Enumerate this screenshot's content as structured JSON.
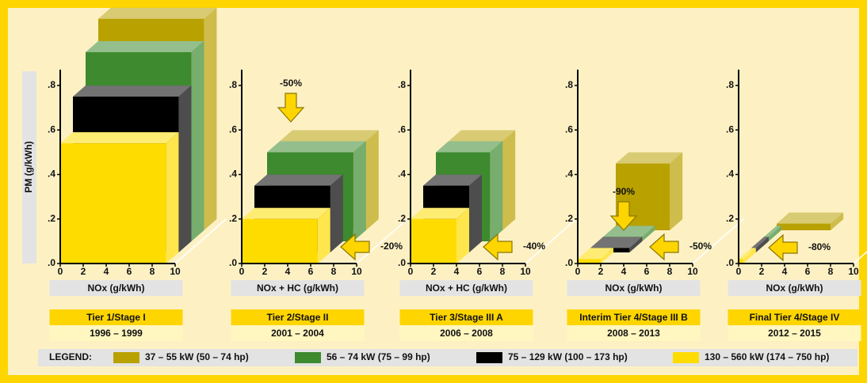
{
  "chart_data": [
    {
      "type": "box",
      "ylabel": "PM (g/kWh)",
      "xlabel": "NOx (g/kWh)",
      "title": "Tier 1/Stage I",
      "subtitle": "1996 – 1999",
      "xlim": [
        0,
        10
      ],
      "xticks": [
        0,
        2,
        4,
        6,
        8,
        10
      ],
      "ylim": [
        0,
        0.8
      ],
      "yticks": [
        {
          "value": 0,
          "label": ".0"
        },
        {
          "value": 0.2,
          "label": ".2"
        },
        {
          "value": 0.4,
          "label": ".4"
        },
        {
          "value": 0.6,
          "label": ".6"
        },
        {
          "value": 0.8,
          "label": ".8"
        }
      ],
      "boxes": [
        {
          "nox": 9.2,
          "pm": 0.95
        },
        {
          "nox": 9.2,
          "pm": 0.85
        },
        {
          "nox": 9.2,
          "pm": 0.7
        },
        {
          "nox": 9.2,
          "pm": 0.54
        }
      ],
      "annotations": []
    },
    {
      "type": "box",
      "xlabel": "NOx + HC (g/kWh)",
      "title": "Tier 2/Stage II",
      "subtitle": "2001 – 2004",
      "xlim": [
        0,
        10
      ],
      "xticks": [
        0,
        2,
        4,
        6,
        8,
        10
      ],
      "ylim": [
        0,
        0.8
      ],
      "yticks": [
        {
          "value": 0,
          "label": ".0"
        },
        {
          "value": 0.2,
          "label": ".2"
        },
        {
          "value": 0.4,
          "label": ".4"
        },
        {
          "value": 0.6,
          "label": ".6"
        },
        {
          "value": 0.8,
          "label": ".8"
        }
      ],
      "boxes": [
        {
          "nox": 7.5,
          "pm": 0.4
        },
        {
          "nox": 7.5,
          "pm": 0.4
        },
        {
          "nox": 6.6,
          "pm": 0.3
        },
        {
          "nox": 6.6,
          "pm": 0.2
        }
      ],
      "annotations": [
        {
          "text": "-50%",
          "direction": "down"
        },
        {
          "text": "-20%",
          "direction": "left"
        }
      ]
    },
    {
      "type": "box",
      "xlabel": "NOx + HC (g/kWh)",
      "title": "Tier 3/Stage III A",
      "subtitle": "2006 – 2008",
      "xlim": [
        0,
        10
      ],
      "xticks": [
        0,
        2,
        4,
        6,
        8,
        10
      ],
      "ylim": [
        0,
        0.8
      ],
      "yticks": [
        {
          "value": 0,
          "label": ".0"
        },
        {
          "value": 0.2,
          "label": ".2"
        },
        {
          "value": 0.4,
          "label": ".4"
        },
        {
          "value": 0.6,
          "label": ".6"
        },
        {
          "value": 0.8,
          "label": ".8"
        }
      ],
      "boxes": [
        {
          "nox": 4.7,
          "pm": 0.4
        },
        {
          "nox": 4.7,
          "pm": 0.4
        },
        {
          "nox": 4.0,
          "pm": 0.3
        },
        {
          "nox": 4.0,
          "pm": 0.2
        }
      ],
      "annotations": [
        {
          "text": "-40%",
          "direction": "left"
        }
      ]
    },
    {
      "type": "box",
      "xlabel": "NOx (g/kWh)",
      "title": "Interim Tier 4/Stage III B",
      "subtitle": "2008 – 2013",
      "xlim": [
        0,
        10
      ],
      "xticks": [
        0,
        2,
        4,
        6,
        8,
        10
      ],
      "ylim": [
        0,
        0.8
      ],
      "yticks": [
        {
          "value": 0,
          "label": ".0"
        },
        {
          "value": 0.2,
          "label": ".2"
        },
        {
          "value": 0.4,
          "label": ".4"
        },
        {
          "value": 0.6,
          "label": ".6"
        },
        {
          "value": 0.8,
          "label": ".8"
        }
      ],
      "boxes": [
        {
          "nox": 4.7,
          "pm": 0.3
        },
        {
          "nox": 3.4,
          "pm": 0.02
        },
        {
          "nox": 3.4,
          "pm": 0.02
        },
        {
          "nox": 2.0,
          "pm": 0.02
        }
      ],
      "annotations": [
        {
          "text": "-90%",
          "direction": "down"
        },
        {
          "text": "-50%",
          "direction": "left"
        }
      ]
    },
    {
      "type": "box",
      "xlabel": "NOx (g/kWh)",
      "title": "Final Tier 4/Stage IV",
      "subtitle": "2012 – 2015",
      "xlim": [
        0,
        10
      ],
      "xticks": [
        0,
        2,
        4,
        6,
        8,
        10
      ],
      "ylim": [
        0,
        0.8
      ],
      "yticks": [
        {
          "value": 0,
          "label": ".0"
        },
        {
          "value": 0.2,
          "label": ".2"
        },
        {
          "value": 0.4,
          "label": ".4"
        },
        {
          "value": 0.6,
          "label": ".6"
        },
        {
          "value": 0.8,
          "label": ".8"
        }
      ],
      "boxes": [
        {
          "nox": 4.7,
          "pm": 0.03
        },
        {
          "nox": 0.4,
          "pm": 0.02
        },
        {
          "nox": 0.4,
          "pm": 0.02
        },
        {
          "nox": 0.4,
          "pm": 0.02
        }
      ],
      "annotations": [
        {
          "text": "-80%",
          "direction": "left"
        }
      ]
    }
  ],
  "legend": {
    "title": "LEGEND:",
    "items": [
      {
        "name": "37 – 55 kW (50 – 74 hp)",
        "color": "#b9a100"
      },
      {
        "name": "56 – 74 kW (75 – 99 hp)",
        "color": "#3d8a2f"
      },
      {
        "name": "75 – 129 kW (100 – 173 hp)",
        "color": "#000000"
      },
      {
        "name": "130 – 560 kW (174 – 750 hp)",
        "color": "#ffdc00"
      }
    ]
  }
}
